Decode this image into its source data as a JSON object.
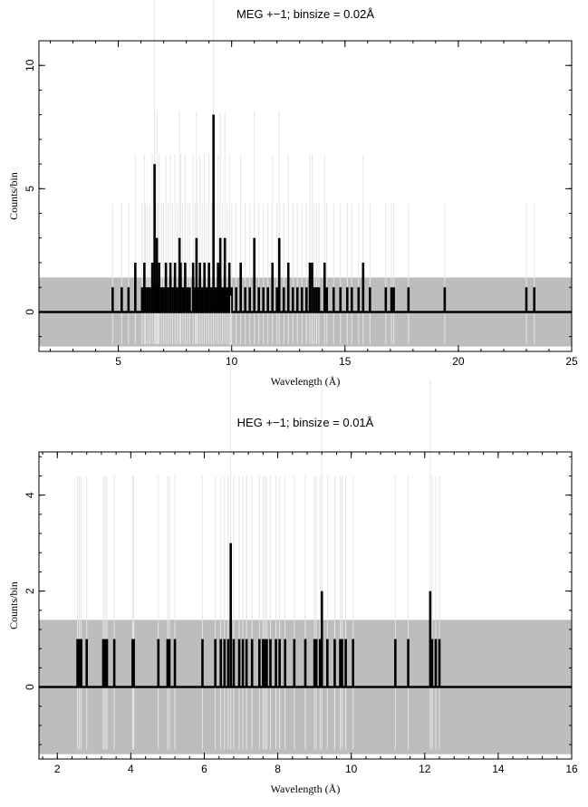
{
  "chart_data": [
    {
      "type": "bar",
      "title": "MEG +−1; binsize = 0.02Å",
      "xlabel": "Wavelength (Å)",
      "ylabel": "Counts/bin",
      "xlim": [
        1.5,
        25
      ],
      "ylim": [
        -1.6,
        11.0
      ],
      "xticks": [
        5,
        10,
        15,
        20,
        25
      ],
      "yticks": [
        0,
        5,
        10
      ],
      "error_band": [
        -1.4,
        1.4
      ],
      "series": [
        {
          "x": [
            4.75,
            5.15,
            5.45,
            5.75,
            6.05,
            6.15,
            6.2,
            6.3,
            6.4,
            6.5,
            6.6,
            6.65,
            6.7,
            6.75,
            6.8,
            6.9,
            7.0,
            7.1,
            7.2,
            7.3,
            7.4,
            7.5,
            7.6,
            7.7,
            7.75,
            7.85,
            7.95,
            8.05,
            8.15,
            8.3,
            8.4,
            8.45,
            8.5,
            8.6,
            8.7,
            8.8,
            8.9,
            9.0,
            9.1,
            9.2,
            9.3,
            9.4,
            9.5,
            9.6,
            9.7,
            9.8,
            9.9,
            10.0,
            10.2,
            10.4,
            10.6,
            10.8,
            11.0,
            11.2,
            11.4,
            11.6,
            11.8,
            12.0,
            12.1,
            12.3,
            12.5,
            12.7,
            12.9,
            13.1,
            13.3,
            13.45,
            13.55,
            13.65,
            13.75,
            13.85,
            14.1,
            14.2,
            14.5,
            14.8,
            15.1,
            15.3,
            15.6,
            15.8,
            16.1,
            16.8,
            17.05,
            17.15,
            17.8,
            19.4,
            23.0,
            23.35
          ],
          "values": [
            1,
            1,
            1,
            2,
            1,
            2,
            1,
            1,
            1,
            2,
            6,
            1,
            3,
            1,
            2,
            1,
            1,
            2,
            1,
            2,
            1,
            2,
            1,
            3,
            2,
            1,
            2,
            1,
            1,
            2,
            1,
            3,
            1,
            2,
            1,
            2,
            1,
            2,
            1,
            8,
            1,
            2,
            3,
            1,
            3,
            1,
            2,
            1,
            1,
            2,
            1,
            1,
            3,
            1,
            1,
            1,
            2,
            1,
            3,
            1,
            2,
            1,
            1,
            1,
            1,
            2,
            2,
            1,
            1,
            1,
            2,
            1,
            1,
            1,
            1,
            1,
            1,
            2,
            1,
            1,
            1,
            1,
            1,
            1,
            1,
            1
          ]
        }
      ]
    },
    {
      "type": "bar",
      "title": "HEG +−1; binsize = 0.01Å",
      "xlabel": "Wavelength (Å)",
      "ylabel": "Counts/bin",
      "xlim": [
        1.5,
        16
      ],
      "ylim": [
        -1.5,
        4.9
      ],
      "xticks": [
        2,
        4,
        6,
        8,
        10,
        12,
        14,
        16
      ],
      "yticks": [
        0,
        2,
        4
      ],
      "error_band": [
        -1.4,
        1.4
      ],
      "series": [
        {
          "x": [
            2.55,
            2.6,
            2.65,
            2.8,
            3.25,
            3.3,
            3.35,
            3.55,
            4.05,
            4.08,
            4.75,
            5.0,
            5.05,
            5.2,
            5.95,
            6.3,
            6.45,
            6.55,
            6.65,
            6.72,
            6.8,
            6.95,
            7.05,
            7.15,
            7.3,
            7.5,
            7.6,
            7.65,
            7.7,
            7.8,
            7.95,
            8.05,
            8.2,
            8.45,
            8.75,
            9.0,
            9.05,
            9.15,
            9.2,
            9.35,
            9.55,
            9.7,
            9.75,
            9.85,
            10.05,
            11.2,
            11.55,
            12.15,
            12.2,
            12.3,
            12.4
          ],
          "values": [
            1,
            1,
            1,
            1,
            1,
            1,
            1,
            1,
            1,
            1,
            1,
            1,
            1,
            1,
            1,
            1,
            1,
            1,
            1,
            3,
            1,
            1,
            1,
            1,
            1,
            1,
            1,
            1,
            1,
            1,
            1,
            1,
            1,
            1,
            1,
            1,
            1,
            1,
            2,
            1,
            1,
            1,
            1,
            1,
            1,
            1,
            1,
            2,
            1,
            1,
            1
          ]
        }
      ]
    }
  ]
}
